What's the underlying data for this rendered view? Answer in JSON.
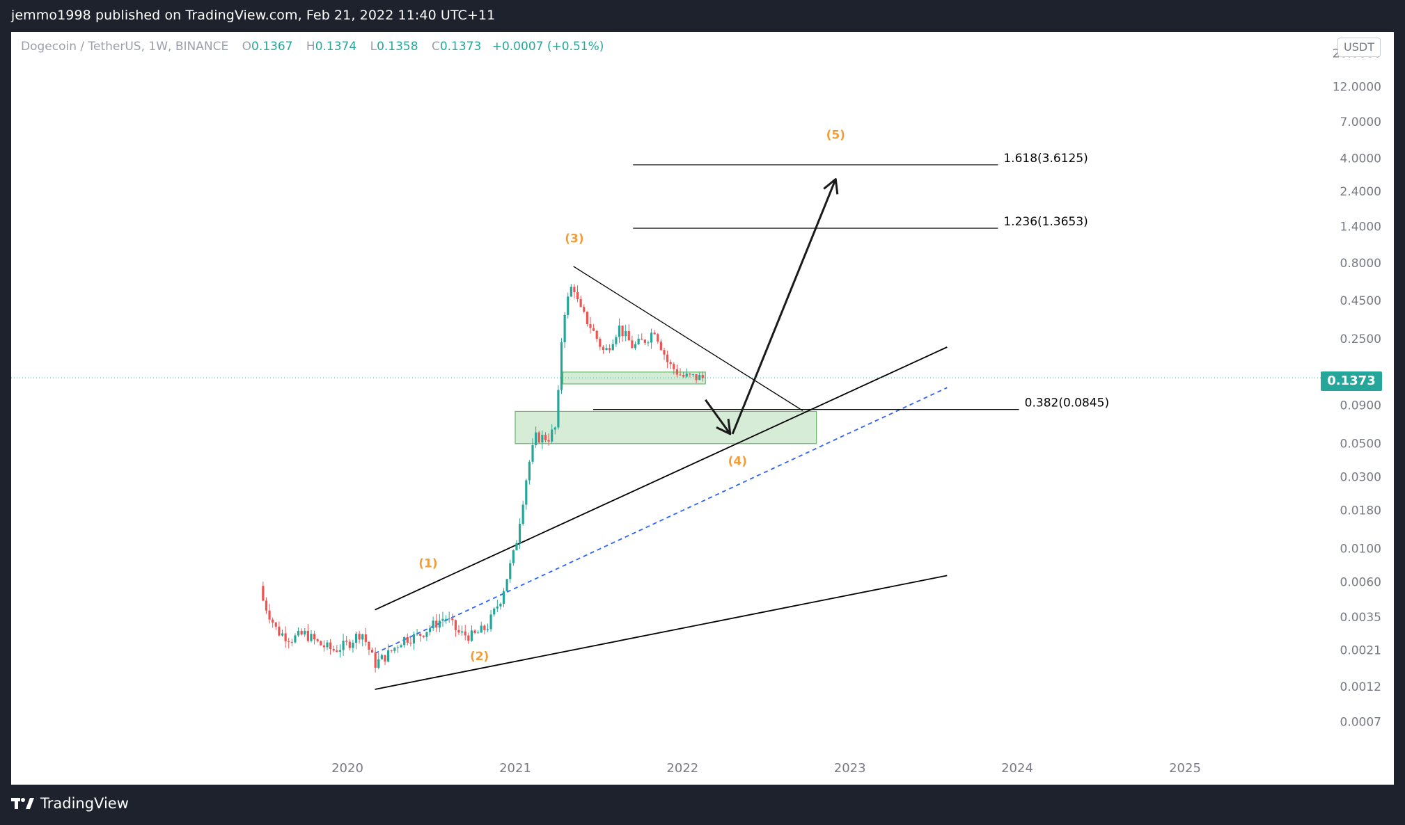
{
  "header": {
    "published": "jemmo1998 published on TradingView.com, Feb 21, 2022 11:40 UTC+11"
  },
  "legend": {
    "symbol": "Dogecoin / TetherUS, 1W, BINANCE",
    "o_label": "O",
    "o_value": "0.1367",
    "h_label": "H",
    "h_value": "0.1374",
    "l_label": "L",
    "l_value": "0.1358",
    "c_label": "C",
    "c_value": "0.1373",
    "change": "+0.0007 (+0.51%)"
  },
  "footer": {
    "brand": "TradingView"
  },
  "colors": {
    "up": "#26a69a",
    "down": "#ef5350",
    "annotation": "#f29d38",
    "zone": "#c8e6c9",
    "zone_border": "#66bb6a",
    "midline": "#2962ff",
    "price": "#26a69a"
  },
  "chart_data": {
    "type": "candlestick",
    "symbol": "Dogecoin / TetherUS",
    "interval": "1W",
    "exchange": "BINANCE",
    "scale": "log",
    "unit": "USDT",
    "last_price": "0.1373",
    "price_ticks": [
      "20.0000",
      "12.0000",
      "7.0000",
      "4.0000",
      "2.4000",
      "1.4000",
      "0.8000",
      "0.4500",
      "0.2500",
      "0.0900",
      "0.0500",
      "0.0300",
      "0.0180",
      "0.0100",
      "0.0060",
      "0.0035",
      "0.0021",
      "0.0012",
      "0.0007"
    ],
    "time_ticks": [
      "2020",
      "2021",
      "2022",
      "2023",
      "2024",
      "2025"
    ],
    "price_series": [
      [
        "2019-07-01",
        0.0045
      ],
      [
        "2019-08-01",
        0.0028
      ],
      [
        "2019-09-01",
        0.0025
      ],
      [
        "2019-10-01",
        0.0027
      ],
      [
        "2019-11-01",
        0.0023
      ],
      [
        "2019-12-01",
        0.0021
      ],
      [
        "2020-01-01",
        0.0023
      ],
      [
        "2020-02-01",
        0.0028
      ],
      [
        "2020-03-01",
        0.0017
      ],
      [
        "2020-04-01",
        0.002
      ],
      [
        "2020-05-01",
        0.0025
      ],
      [
        "2020-06-01",
        0.0026
      ],
      [
        "2020-07-01",
        0.003
      ],
      [
        "2020-08-01",
        0.0035
      ],
      [
        "2020-09-01",
        0.0027
      ],
      [
        "2020-10-01",
        0.0026
      ],
      [
        "2020-11-01",
        0.003
      ],
      [
        "2020-12-01",
        0.0047
      ],
      [
        "2021-01-01",
        0.01
      ],
      [
        "2021-01-29",
        0.035
      ],
      [
        "2021-02-15",
        0.055
      ],
      [
        "2021-03-15",
        0.055
      ],
      [
        "2021-04-01",
        0.065
      ],
      [
        "2021-04-15",
        0.35
      ],
      [
        "2021-05-07",
        0.6
      ],
      [
        "2021-05-20",
        0.4
      ],
      [
        "2021-06-15",
        0.3
      ],
      [
        "2021-07-15",
        0.2
      ],
      [
        "2021-08-15",
        0.3
      ],
      [
        "2021-09-15",
        0.22
      ],
      [
        "2021-10-15",
        0.25
      ],
      [
        "2021-11-01",
        0.29
      ],
      [
        "2021-12-01",
        0.17
      ],
      [
        "2022-01-01",
        0.14
      ],
      [
        "2022-02-15",
        0.1373
      ]
    ],
    "wave_labels": [
      {
        "text": "(1)",
        "date": "2020-06-25",
        "price": 0.0075
      },
      {
        "text": "(2)",
        "date": "2020-10-15",
        "price": 0.0018
      },
      {
        "text": "(3)",
        "date": "2021-05-10",
        "price": 1.1
      },
      {
        "text": "(4)",
        "date": "2022-05-01",
        "price": 0.036
      },
      {
        "text": "(5)",
        "date": "2022-12-01",
        "price": 5.4
      }
    ],
    "fib_levels": [
      {
        "label": "1.618(3.6125)",
        "value": 3.6125,
        "from": "2021-09-15",
        "to": "2023-11-20"
      },
      {
        "label": "1.236(1.3653)",
        "value": 1.3653,
        "from": "2021-09-15",
        "to": "2023-11-20"
      },
      {
        "label": "0.382(0.0845)",
        "value": 0.0845,
        "from": "2021-06-20",
        "to": "2024-01-05"
      }
    ],
    "zones": [
      {
        "from": "2021-04-15",
        "to": "2022-02-20",
        "low": 0.125,
        "high": 0.15
      },
      {
        "from": "2021-01-01",
        "to": "2022-10-20",
        "low": 0.05,
        "high": 0.082
      }
    ],
    "channel": {
      "upper": [
        [
          "2020-03-01",
          0.0039
        ],
        [
          "2023-08-01",
          0.22
        ]
      ],
      "middle": [
        [
          "2020-03-01",
          0.002
        ],
        [
          "2023-08-01",
          0.118
        ]
      ],
      "lower": [
        [
          "2020-03-01",
          0.00115
        ],
        [
          "2023-08-01",
          0.0066
        ]
      ]
    },
    "trendline": [
      [
        "2021-05-08",
        0.76
      ],
      [
        "2022-09-20",
        0.083
      ]
    ],
    "projection_arrows": [
      {
        "from": [
          "2022-02-20",
          0.098
        ],
        "to": [
          "2022-04-15",
          0.058
        ]
      },
      {
        "from": [
          "2022-04-20",
          0.058
        ],
        "to": [
          "2022-12-01",
          2.9
        ]
      }
    ]
  }
}
